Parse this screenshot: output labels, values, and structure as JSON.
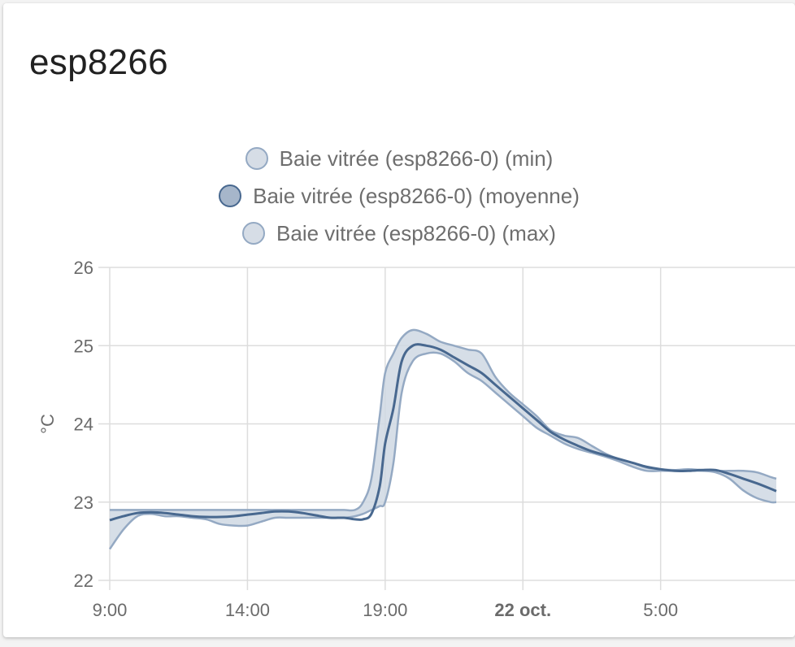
{
  "card": {
    "title": "esp8266"
  },
  "colors": {
    "line": "#48688f",
    "band_fill": "#cfd8e3",
    "band_stroke": "#94a9c3",
    "grid": "#dddddd",
    "swatch_min": "#d6dde6",
    "swatch_mean": "#a6b6ca",
    "swatch_max": "#d6dde6"
  },
  "chart_data": {
    "type": "line",
    "legend_position": "top-center",
    "grid": true,
    "ylabel": "°C",
    "ylim": [
      22,
      26
    ],
    "y_ticks": [
      "22",
      "23",
      "24",
      "25",
      "26"
    ],
    "x_unit": "hours since 9:00 (21 oct.)",
    "xlim": [
      0,
      24.2
    ],
    "x_ticks": [
      {
        "x": 0,
        "label": "9:00",
        "bold": false
      },
      {
        "x": 5,
        "label": "14:00",
        "bold": false
      },
      {
        "x": 10,
        "label": "19:00",
        "bold": false
      },
      {
        "x": 15,
        "label": "22 oct.",
        "bold": true
      },
      {
        "x": 20,
        "label": "5:00",
        "bold": false
      }
    ],
    "x": [
      0,
      0.5,
      1,
      1.5,
      2,
      2.5,
      3,
      3.5,
      4,
      4.5,
      5,
      5.5,
      6,
      6.5,
      7,
      7.5,
      8,
      8.5,
      8.9,
      9.2,
      9.5,
      9.8,
      10,
      10.3,
      10.6,
      11,
      11.5,
      12,
      12.5,
      13,
      13.5,
      14,
      14.5,
      15,
      15.5,
      16,
      16.5,
      17,
      17.5,
      18,
      18.5,
      19,
      19.5,
      20,
      20.5,
      21,
      21.5,
      22,
      22.5,
      23,
      23.5,
      24,
      24.2
    ],
    "series": [
      {
        "name": "Baie vitrée (esp8266-0) (min)",
        "values": [
          22.4,
          22.65,
          22.82,
          22.85,
          22.82,
          22.82,
          22.8,
          22.78,
          22.72,
          22.7,
          22.7,
          22.75,
          22.8,
          22.8,
          22.8,
          22.8,
          22.8,
          22.8,
          22.82,
          22.85,
          22.9,
          22.95,
          23.0,
          23.5,
          24.4,
          24.8,
          24.9,
          24.9,
          24.8,
          24.65,
          24.55,
          24.4,
          24.25,
          24.1,
          23.95,
          23.85,
          23.75,
          23.68,
          23.63,
          23.58,
          23.52,
          23.45,
          23.4,
          23.4,
          23.4,
          23.4,
          23.4,
          23.38,
          23.3,
          23.15,
          23.05,
          23.0,
          23.0
        ]
      },
      {
        "name": "Baie vitrée (esp8266-0) (moyenne)",
        "values": [
          22.77,
          22.82,
          22.86,
          22.87,
          22.86,
          22.84,
          22.82,
          22.81,
          22.81,
          22.82,
          22.84,
          22.86,
          22.88,
          22.88,
          22.86,
          22.83,
          22.8,
          22.8,
          22.78,
          22.78,
          22.85,
          23.2,
          23.75,
          24.2,
          24.8,
          25.0,
          25.0,
          24.95,
          24.85,
          24.75,
          24.65,
          24.5,
          24.35,
          24.2,
          24.05,
          23.9,
          23.8,
          23.72,
          23.65,
          23.6,
          23.55,
          23.5,
          23.45,
          23.42,
          23.4,
          23.4,
          23.41,
          23.41,
          23.36,
          23.3,
          23.24,
          23.17,
          23.14
        ]
      },
      {
        "name": "Baie vitrée (esp8266-0) (max)",
        "values": [
          22.9,
          22.9,
          22.9,
          22.9,
          22.9,
          22.9,
          22.9,
          22.9,
          22.9,
          22.9,
          22.9,
          22.9,
          22.9,
          22.9,
          22.9,
          22.9,
          22.9,
          22.9,
          22.9,
          23.0,
          23.3,
          24.1,
          24.65,
          24.9,
          25.1,
          25.2,
          25.15,
          25.05,
          25.0,
          24.95,
          24.9,
          24.6,
          24.4,
          24.25,
          24.1,
          23.92,
          23.85,
          23.82,
          23.72,
          23.62,
          23.55,
          23.5,
          23.44,
          23.42,
          23.41,
          23.42,
          23.41,
          23.4,
          23.4,
          23.4,
          23.38,
          23.32,
          23.3
        ]
      }
    ]
  }
}
